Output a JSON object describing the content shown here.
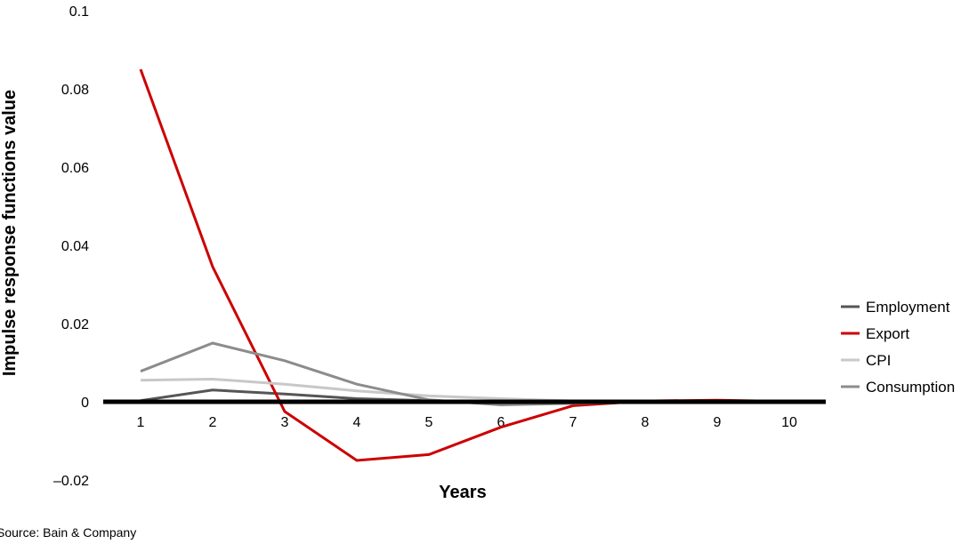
{
  "chart_data": {
    "type": "line",
    "title": "",
    "xlabel": "Years",
    "ylabel": "Impulse response functions value",
    "x": [
      1,
      2,
      3,
      4,
      5,
      6,
      7,
      8,
      9,
      10
    ],
    "ylim": [
      -0.02,
      0.1
    ],
    "yticks": [
      -0.02,
      0,
      0.02,
      0.04,
      0.06,
      0.08,
      0.1
    ],
    "ytick_labels": [
      "–0.02",
      "0",
      "0.02",
      "0.04",
      "0.06",
      "0.08",
      "0.1"
    ],
    "grid": false,
    "legend": "right",
    "series": [
      {
        "name": "Employment",
        "color": "#555555",
        "values": [
          0.0003,
          0.003,
          0.002,
          0.0008,
          0.0003,
          -0.0005,
          -0.0003,
          -0.0001,
          -0.0002,
          -0.0001
        ]
      },
      {
        "name": "Export",
        "color": "#cc0000",
        "values": [
          0.085,
          0.0345,
          -0.0025,
          -0.015,
          -0.0135,
          -0.0065,
          -0.001,
          0.0002,
          0.0004,
          0.0001
        ]
      },
      {
        "name": "CPI",
        "color": "#c8c8c8",
        "values": [
          0.0055,
          0.0058,
          0.0045,
          0.0028,
          0.0015,
          0.0008,
          0.0002,
          0.0001,
          0.0,
          0.0
        ]
      },
      {
        "name": "Consumption",
        "color": "#8c8c8c",
        "values": [
          0.0078,
          0.015,
          0.0105,
          0.0045,
          0.0005,
          -0.0008,
          -0.0004,
          -0.0001,
          -0.0001,
          -0.0001
        ]
      }
    ]
  },
  "source": "Source: Bain & Company"
}
